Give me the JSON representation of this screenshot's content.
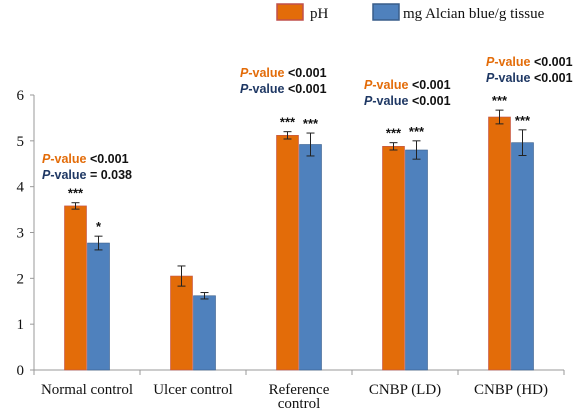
{
  "chart_data": {
    "type": "bar",
    "categories": [
      "Normal control",
      "Ulcer control",
      "Reference control",
      "CNBP (LD)",
      "CNBP (HD)"
    ],
    "series": [
      {
        "name": "pH",
        "color": "#E36C09",
        "border": "#C0504D",
        "values": [
          3.58,
          2.05,
          5.12,
          4.88,
          5.52
        ],
        "errors": [
          0.07,
          0.22,
          0.08,
          0.08,
          0.15
        ],
        "stars": [
          "***",
          "",
          "***",
          "***",
          "***"
        ]
      },
      {
        "name": "mg Alcian blue/g tissue",
        "color": "#4F81BD",
        "border": "#385D8A",
        "values": [
          2.77,
          1.62,
          4.92,
          4.8,
          4.96
        ],
        "errors": [
          0.15,
          0.07,
          0.25,
          0.2,
          0.28
        ],
        "stars": [
          "*",
          "",
          "***",
          "***",
          "***"
        ]
      }
    ],
    "ylim": [
      0,
      6
    ],
    "yticks": [
      "0",
      "1",
      "2",
      "3",
      "4",
      "5",
      "6"
    ],
    "grid": false,
    "legend": "top",
    "annotations": [
      {
        "category": "Normal control",
        "lines": [
          {
            "p": "P",
            "label": "-value",
            "rest": " <0.001",
            "color": "#E36C09"
          },
          {
            "p": "P",
            "label": "-value",
            "rest": " = 0.038",
            "color": "#1F3864"
          }
        ]
      },
      {
        "category": "Reference control",
        "lines": [
          {
            "p": "P",
            "label": "-value",
            "rest": "  <0.001",
            "color": "#E36C09"
          },
          {
            "p": "P",
            "label": "-value",
            "rest": " <0.001",
            "color": "#1F3864"
          }
        ]
      },
      {
        "category": "CNBP (LD)",
        "lines": [
          {
            "p": "P",
            "label": "-value",
            "rest": " <0.001",
            "color": "#E36C09"
          },
          {
            "p": "P",
            "label": "-value",
            "rest": " <0.001",
            "color": "#1F3864"
          }
        ]
      },
      {
        "category": "CNBP (HD)",
        "lines": [
          {
            "p": "P",
            "label": "-value",
            "rest": " <0.001",
            "color": "#E36C09"
          },
          {
            "p": "P",
            "label": "-value",
            "rest": " <0.001",
            "color": "#1F3864"
          }
        ]
      }
    ]
  }
}
